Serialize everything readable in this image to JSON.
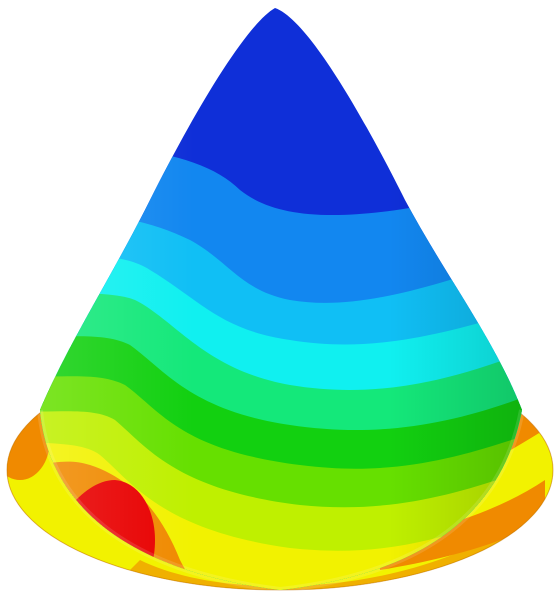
{
  "colors": {
    "background": "#ffffff",
    "band_red": "#e80000",
    "band_orange": "#f08a00",
    "band_yellow": "#f2f200",
    "band_yellow_green": "#bff000",
    "band_light_green": "#66e000",
    "band_green": "#12d010",
    "band_green_teal": "#14e87a",
    "band_cyan": "#10f0f0",
    "band_sky": "#10bff5",
    "band_blue_light": "#1287f0",
    "band_deep_blue": "#0f2fd8"
  }
}
